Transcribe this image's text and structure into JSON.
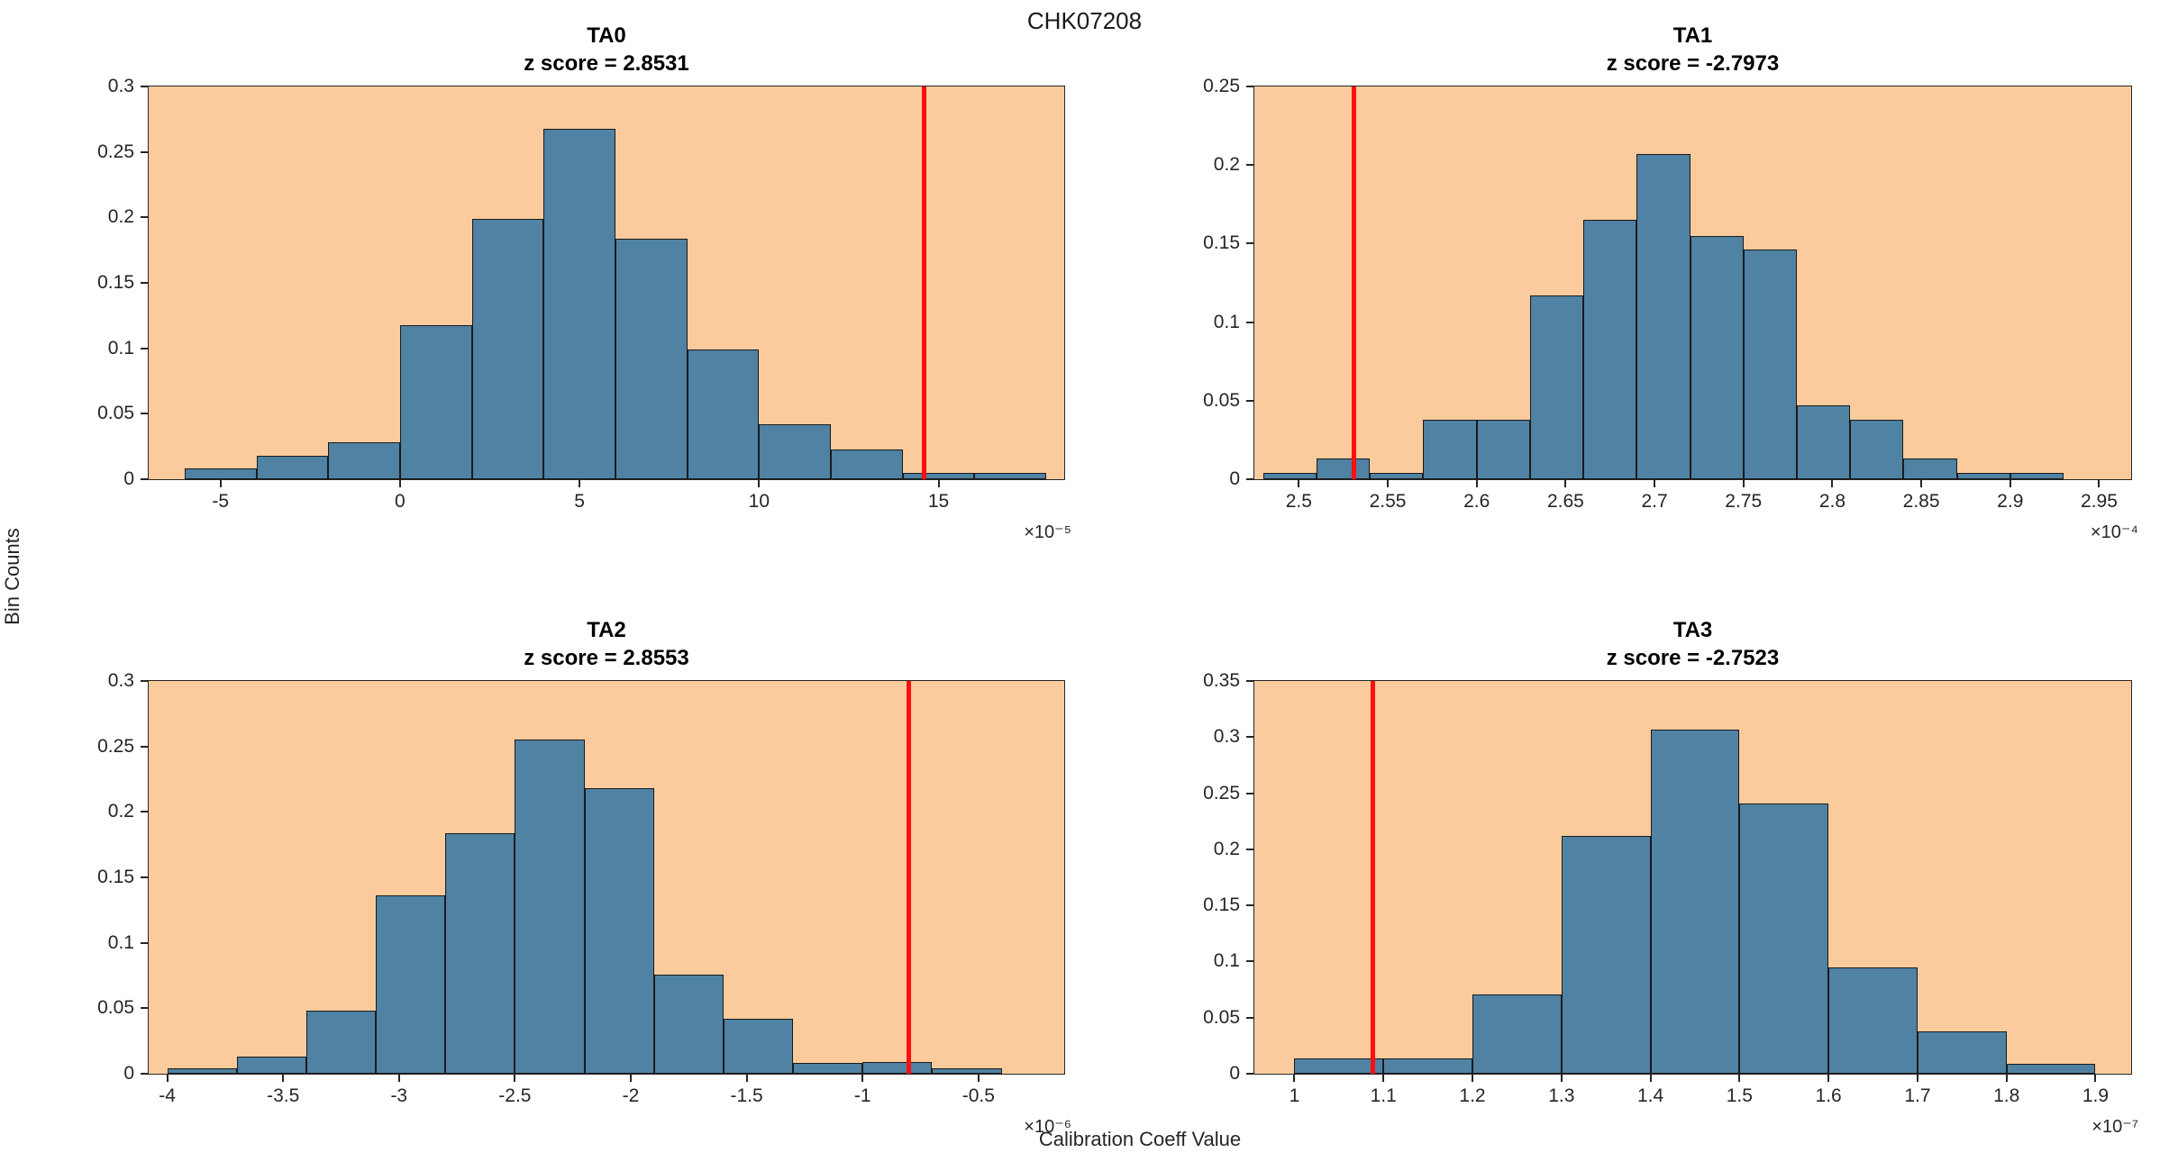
{
  "figure_title": "CHK07208",
  "ylabel": "Bin Counts",
  "xlabel": "Calibration Coeff Value",
  "colors": {
    "background": "#FFFFFF",
    "plot_bg": "#FBCB9D",
    "bar_fill": "#4F82A3",
    "bar_edge": "#1A1A1A",
    "red_line": "#FF1010",
    "axis": "#262626",
    "text": "#262626"
  },
  "chart_data": [
    {
      "type": "bar",
      "title": "TA0",
      "subtitle": "z score = 2.8531",
      "z_score": 2.8531,
      "bin_start": -6,
      "bin_width": 2,
      "heights": [
        0.008,
        0.018,
        0.028,
        0.118,
        0.199,
        0.268,
        0.184,
        0.099,
        0.042,
        0.023,
        0.005,
        0.005
      ],
      "xlim": [
        -7,
        18.5
      ],
      "ylim": [
        0,
        0.3
      ],
      "x_tick_values": [
        -5,
        0,
        5,
        10,
        15
      ],
      "x_tick_labels": [
        "-5",
        "0",
        "5",
        "10",
        "15"
      ],
      "y_tick_values": [
        0,
        0.05,
        0.1,
        0.15,
        0.2,
        0.25,
        0.3
      ],
      "y_tick_labels": [
        "0",
        "0.05",
        "0.1",
        "0.15",
        "0.2",
        "0.25",
        "0.3"
      ],
      "red_line_x": 14.6,
      "x_exponent_label": "×10⁻⁵"
    },
    {
      "type": "bar",
      "title": "TA1",
      "subtitle": "z score = -2.7973",
      "z_score": -2.7973,
      "bin_start": 2.48,
      "bin_width": 0.03,
      "heights": [
        0.004,
        0.013,
        0.004,
        0.038,
        0.038,
        0.117,
        0.165,
        0.207,
        0.155,
        0.146,
        0.047,
        0.038,
        0.013,
        0.004,
        0.004
      ],
      "xlim": [
        2.475,
        2.968
      ],
      "ylim": [
        0,
        0.25
      ],
      "x_tick_values": [
        2.5,
        2.55,
        2.6,
        2.65,
        2.7,
        2.75,
        2.8,
        2.85,
        2.9,
        2.95
      ],
      "x_tick_labels": [
        "2.5",
        "2.55",
        "2.6",
        "2.65",
        "2.7",
        "2.75",
        "2.8",
        "2.85",
        "2.9",
        "2.95"
      ],
      "y_tick_values": [
        0,
        0.05,
        0.1,
        0.15,
        0.2,
        0.25
      ],
      "y_tick_labels": [
        "0",
        "0.05",
        "0.1",
        "0.15",
        "0.2",
        "0.25"
      ],
      "red_line_x": 2.531,
      "x_exponent_label": "×10⁻⁴"
    },
    {
      "type": "bar",
      "title": "TA2",
      "subtitle": "z score = 2.8553",
      "z_score": 2.8553,
      "bin_start": -4.0,
      "bin_width": 0.3,
      "heights": [
        0.004,
        0.013,
        0.048,
        0.136,
        0.184,
        0.255,
        0.218,
        0.076,
        0.042,
        0.008,
        0.009,
        0.004
      ],
      "xlim": [
        -4.08,
        -0.13
      ],
      "ylim": [
        0,
        0.3
      ],
      "x_tick_values": [
        -4,
        -3.5,
        -3,
        -2.5,
        -2,
        -1.5,
        -1,
        -0.5
      ],
      "x_tick_labels": [
        "-4",
        "-3.5",
        "-3",
        "-2.5",
        "-2",
        "-1.5",
        "-1",
        "-0.5"
      ],
      "y_tick_values": [
        0,
        0.05,
        0.1,
        0.15,
        0.2,
        0.25,
        0.3
      ],
      "y_tick_labels": [
        "0",
        "0.05",
        "0.1",
        "0.15",
        "0.2",
        "0.25",
        "0.3"
      ],
      "red_line_x": -0.8,
      "x_exponent_label": "×10⁻⁶"
    },
    {
      "type": "bar",
      "title": "TA3",
      "subtitle": "z score = -2.7523",
      "z_score": -2.7523,
      "bin_start": 1.0,
      "bin_width": 0.1,
      "heights": [
        0.014,
        0.014,
        0.071,
        0.212,
        0.307,
        0.241,
        0.095,
        0.038,
        0.009
      ],
      "xlim": [
        0.955,
        1.94
      ],
      "ylim": [
        0,
        0.35
      ],
      "x_tick_values": [
        1,
        1.1,
        1.2,
        1.3,
        1.4,
        1.5,
        1.6,
        1.7,
        1.8,
        1.9
      ],
      "x_tick_labels": [
        "1",
        "1.1",
        "1.2",
        "1.3",
        "1.4",
        "1.5",
        "1.6",
        "1.7",
        "1.8",
        "1.9"
      ],
      "y_tick_values": [
        0,
        0.05,
        0.1,
        0.15,
        0.2,
        0.25,
        0.3,
        0.35
      ],
      "y_tick_labels": [
        "0",
        "0.05",
        "0.1",
        "0.15",
        "0.2",
        "0.25",
        "0.3",
        "0.35"
      ],
      "red_line_x": 1.088,
      "x_exponent_label": "×10⁻⁷"
    }
  ]
}
